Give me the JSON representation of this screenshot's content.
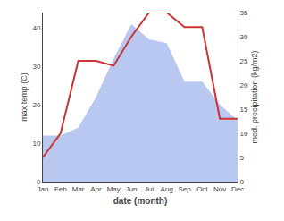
{
  "chart_data": {
    "type": "line",
    "categories": [
      "Jan",
      "Feb",
      "Mar",
      "Apr",
      "May",
      "Jun",
      "Jul",
      "Aug",
      "Sep",
      "Oct",
      "Nov",
      "Dec"
    ],
    "xlabel": "date (month)",
    "ylabel": "max temp (C)",
    "y2label": "med. precipitation (kg/m2)",
    "series": [
      {
        "type": "area",
        "color": "#b8c8f0",
        "values": [
          12,
          12,
          14,
          22,
          32,
          41,
          37,
          36,
          26,
          26,
          20,
          16
        ]
      },
      {
        "type": "line",
        "color": "#cc3333",
        "axis": "y2",
        "values": [
          5,
          10,
          25,
          25,
          24,
          30,
          35,
          35,
          32,
          32,
          13,
          13
        ]
      }
    ],
    "ylim": [
      0,
      44
    ],
    "yticks": [
      0,
      10,
      20,
      30,
      40
    ],
    "y2lim": [
      0,
      35
    ],
    "y2ticks": [
      0,
      5,
      10,
      15,
      20,
      25,
      30,
      35
    ],
    "grid": false
  }
}
